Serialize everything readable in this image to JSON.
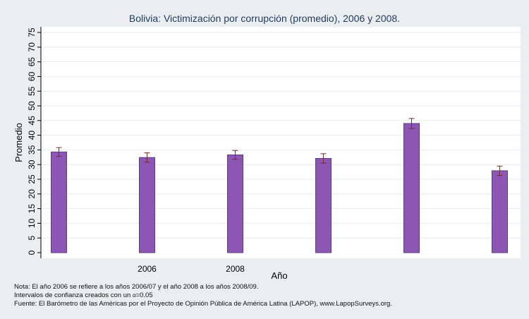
{
  "chart_data": {
    "type": "bar",
    "title": "Bolivia: Victimización por corrupción (promedio), 2006 y 2008.",
    "xlabel": "Año",
    "ylabel": "Promedio",
    "ylim": [
      0,
      75
    ],
    "yticks": [
      0,
      5,
      10,
      15,
      20,
      25,
      30,
      35,
      40,
      45,
      50,
      55,
      60,
      65,
      70,
      75
    ],
    "categories": [
      "",
      "2006",
      "2008",
      "",
      "",
      ""
    ],
    "values": [
      34.3,
      32.4,
      33.3,
      32.1,
      44.0,
      27.9
    ],
    "ci_low": [
      32.8,
      30.8,
      31.8,
      30.5,
      42.3,
      26.3
    ],
    "ci_high": [
      35.8,
      34.0,
      34.8,
      33.7,
      45.7,
      29.5
    ],
    "bar_color": "#8c56b4",
    "error_color": "#7a2a2a",
    "grid": true,
    "legend": "none"
  },
  "notes": {
    "line1": "Nota: El año 2006 se refiere a los años 2006/07 y el año 2008 a los años 2008/09.",
    "line2_prefix": "Intervalos de confianza creados con un ",
    "line2_alpha": "α",
    "line2_suffix": "=0.05",
    "line3": "Fuente: El Barómetro de las Américas por el Proyecto de Opinión Pública de América Latina (LAPOP), www.LapopSurveys.org."
  }
}
